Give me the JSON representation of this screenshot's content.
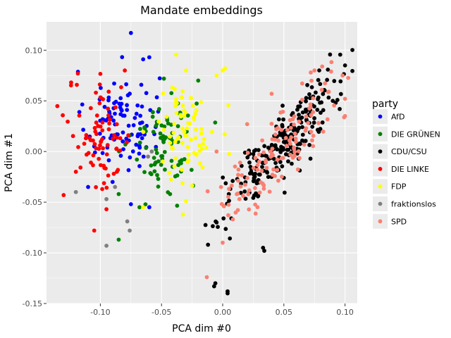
{
  "chart_data": {
    "type": "scatter",
    "title": "Mandate embeddings",
    "xlabel": "PCA dim #0",
    "ylabel": "PCA dim #1",
    "xlim": [
      -0.144,
      0.11
    ],
    "ylim": [
      -0.15,
      0.128
    ],
    "xticks": [
      -0.1,
      -0.05,
      0.0,
      0.05,
      0.1
    ],
    "xtick_labels": [
      "-0.10",
      "-0.05",
      "0.00",
      "0.05",
      "0.10"
    ],
    "yticks": [
      -0.15,
      -0.1,
      -0.05,
      0.0,
      0.05,
      0.1
    ],
    "ytick_labels": [
      "-0.15",
      "-0.10",
      "-0.05",
      "0.00",
      "0.05",
      "0.10"
    ],
    "grid": true,
    "legend_title": "party",
    "legend_position": "right",
    "series": [
      {
        "name": "AfD",
        "color": "#0000ff",
        "cx": -0.082,
        "cy": 0.03,
        "sx": 0.015,
        "sy": 0.025,
        "n": 95,
        "points": [
          [
            -0.075,
            0.117
          ],
          [
            -0.06,
            0.093
          ],
          [
            -0.065,
            0.091
          ],
          [
            -0.105,
            0.005
          ],
          [
            -0.11,
            -0.035
          ],
          [
            -0.09,
            -0.03
          ],
          [
            -0.06,
            -0.055
          ],
          [
            -0.075,
            -0.052
          ]
        ]
      },
      {
        "name": "DIE GRÜNEN",
        "color": "#008000",
        "cx": -0.048,
        "cy": 0.01,
        "sx": 0.013,
        "sy": 0.024,
        "n": 85,
        "points": [
          [
            -0.085,
            -0.087
          ],
          [
            -0.068,
            -0.055
          ],
          [
            -0.043,
            -0.042
          ],
          [
            -0.085,
            -0.042
          ],
          [
            -0.02,
            0.07
          ]
        ]
      },
      {
        "name": "CDU/CSU",
        "color": "#000000",
        "cx": 0.053,
        "cy": 0.013,
        "sx": 0.018,
        "sy": 0.035,
        "n": 240,
        "slope": 1.5,
        "points": [
          [
            0.1,
            0.085
          ],
          [
            0.004,
            -0.138
          ],
          [
            0.004,
            -0.14
          ],
          [
            -0.006,
            -0.13
          ],
          [
            -0.007,
            -0.133
          ],
          [
            0.033,
            -0.095
          ],
          [
            0.034,
            -0.098
          ],
          [
            -0.012,
            -0.092
          ],
          [
            -0.005,
            -0.07
          ],
          [
            0.09,
            0.05
          ]
        ]
      },
      {
        "name": "DIE LINKE",
        "color": "#ff0000",
        "cx": -0.1,
        "cy": 0.015,
        "sx": 0.013,
        "sy": 0.028,
        "n": 80,
        "points": [
          [
            -0.08,
            0.08
          ],
          [
            -0.13,
            -0.043
          ],
          [
            -0.105,
            -0.078
          ],
          [
            -0.095,
            -0.057
          ],
          [
            -0.12,
            -0.02
          ]
        ]
      },
      {
        "name": "FDP",
        "color": "#ffff00",
        "cx": -0.03,
        "cy": 0.02,
        "sx": 0.012,
        "sy": 0.025,
        "n": 80,
        "points": [
          [
            0.002,
            0.082
          ],
          [
            0.0,
            0.08
          ],
          [
            -0.03,
            0.08
          ],
          [
            -0.065,
            -0.055
          ],
          [
            -0.03,
            -0.049
          ],
          [
            -0.005,
            0.075
          ]
        ]
      },
      {
        "name": "fraktionslos",
        "color": "#7f7f7f",
        "cx": -0.085,
        "cy": -0.05,
        "sx": 0.01,
        "sy": 0.02,
        "n": 0,
        "points": [
          [
            -0.12,
            -0.04
          ],
          [
            -0.095,
            -0.093
          ],
          [
            -0.078,
            -0.069
          ],
          [
            -0.076,
            -0.078
          ],
          [
            -0.088,
            -0.035
          ],
          [
            -0.095,
            -0.047
          ],
          [
            -0.058,
            0.0
          ],
          [
            -0.061,
            -0.005
          ]
        ]
      },
      {
        "name": "SPD",
        "color": "#fa8072",
        "cx": 0.045,
        "cy": 0.0,
        "sx": 0.019,
        "sy": 0.035,
        "n": 130,
        "slope": 1.5,
        "points": [
          [
            -0.013,
            -0.124
          ],
          [
            0.0,
            -0.09
          ],
          [
            0.04,
            0.057
          ],
          [
            0.1,
            0.035
          ],
          [
            0.1,
            0.052
          ],
          [
            0.072,
            0.078
          ],
          [
            0.075,
            0.08
          ],
          [
            -0.005,
            0.0
          ],
          [
            0.02,
            0.027
          ],
          [
            0.098,
            0.075
          ]
        ]
      }
    ]
  }
}
